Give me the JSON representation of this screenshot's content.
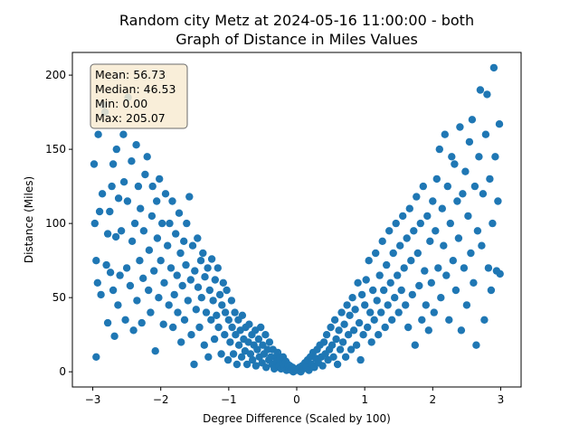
{
  "chart_data": {
    "type": "scatter",
    "title": "Random city Metz at 2024-05-16 11:00:00  - both",
    "subtitle": "Graph of Distance in Miles Values",
    "xlabel": "Degree Difference (Scaled by 100)",
    "ylabel": "Distance (Miles)",
    "xlim": [
      -3.3,
      3.3
    ],
    "ylim": [
      -10.25,
      215.3
    ],
    "xticks": [
      -3,
      -2,
      -1,
      0,
      1,
      2,
      3
    ],
    "yticks": [
      0,
      50,
      100,
      150,
      200
    ],
    "grid": false,
    "marker_color": "#1f77b4",
    "stats_box": {
      "lines": [
        "Mean: 56.73",
        "Median: 46.53",
        "Min: 0.00",
        "Max: 205.07"
      ],
      "background": "#f8ebd2",
      "border": "#6b6b6b"
    },
    "series": [
      {
        "points": [
          [
            -2.95,
            10
          ],
          [
            -2.98,
            140
          ],
          [
            -2.97,
            100
          ],
          [
            -2.95,
            75
          ],
          [
            -2.93,
            60
          ],
          [
            -2.92,
            160
          ],
          [
            -2.9,
            108
          ],
          [
            -2.88,
            52
          ],
          [
            -2.86,
            120
          ],
          [
            -2.85,
            180
          ],
          [
            -2.82,
            175
          ],
          [
            -2.8,
            72
          ],
          [
            -2.78,
            33
          ],
          [
            -2.78,
            93
          ],
          [
            -2.75,
            108
          ],
          [
            -2.74,
            67
          ],
          [
            -2.72,
            125
          ],
          [
            -2.7,
            140
          ],
          [
            -2.7,
            55
          ],
          [
            -2.68,
            24
          ],
          [
            -2.66,
            91
          ],
          [
            -2.65,
            150
          ],
          [
            -2.63,
            45
          ],
          [
            -2.62,
            117
          ],
          [
            -2.6,
            65
          ],
          [
            -2.58,
            95
          ],
          [
            -2.55,
            160
          ],
          [
            -2.54,
            128
          ],
          [
            -2.52,
            35
          ],
          [
            -2.5,
            70
          ],
          [
            -2.49,
            115
          ],
          [
            -2.48,
            185
          ],
          [
            -2.45,
            58
          ],
          [
            -2.43,
            142
          ],
          [
            -2.42,
            88
          ],
          [
            -2.4,
            28
          ],
          [
            -2.38,
            100
          ],
          [
            -2.36,
            153
          ],
          [
            -2.35,
            48
          ],
          [
            -2.33,
            125
          ],
          [
            -2.31,
            75
          ],
          [
            -2.3,
            110
          ],
          [
            -2.28,
            33
          ],
          [
            -2.26,
            63
          ],
          [
            -2.25,
            95
          ],
          [
            -2.23,
            133
          ],
          [
            -2.2,
            145
          ],
          [
            -2.18,
            55
          ],
          [
            -2.17,
            82
          ],
          [
            -2.15,
            40
          ],
          [
            -2.13,
            105
          ],
          [
            -2.12,
            125
          ],
          [
            -2.1,
            68
          ],
          [
            -2.08,
            14
          ],
          [
            -2.06,
            115
          ],
          [
            -2.05,
            90
          ],
          [
            -2.03,
            50
          ],
          [
            -2.02,
            130
          ],
          [
            -2.0,
            75
          ],
          [
            -1.98,
            100
          ],
          [
            -1.96,
            32
          ],
          [
            -1.95,
            60
          ],
          [
            -1.93,
            120
          ],
          [
            -1.9,
            85
          ],
          [
            -1.88,
            45
          ],
          [
            -1.87,
            100
          ],
          [
            -1.85,
            70
          ],
          [
            -1.83,
            115
          ],
          [
            -1.82,
            30
          ],
          [
            -1.8,
            52
          ],
          [
            -1.78,
            93
          ],
          [
            -1.76,
            65
          ],
          [
            -1.75,
            40
          ],
          [
            -1.73,
            107
          ],
          [
            -1.71,
            80
          ],
          [
            -1.7,
            20
          ],
          [
            -1.68,
            58
          ],
          [
            -1.66,
            88
          ],
          [
            -1.65,
            35
          ],
          [
            -1.63,
            72
          ],
          [
            -1.62,
            100
          ],
          [
            -1.6,
            48
          ],
          [
            -1.58,
            118
          ],
          [
            -1.56,
            62
          ],
          [
            -1.55,
            25
          ],
          [
            -1.53,
            85
          ],
          [
            -1.51,
            5
          ],
          [
            -1.5,
            68
          ],
          [
            -1.48,
            42
          ],
          [
            -1.46,
            90
          ],
          [
            -1.45,
            57
          ],
          [
            -1.43,
            30
          ],
          [
            -1.41,
            75
          ],
          [
            -1.4,
            50
          ],
          [
            -1.38,
            80
          ],
          [
            -1.36,
            18
          ],
          [
            -1.35,
            64
          ],
          [
            -1.33,
            40
          ],
          [
            -1.31,
            70
          ],
          [
            -1.3,
            10
          ],
          [
            -1.28,
            55
          ],
          [
            -1.26,
            35
          ],
          [
            -1.25,
            76
          ],
          [
            -1.23,
            48
          ],
          [
            -1.21,
            22
          ],
          [
            -1.2,
            62
          ],
          [
            -1.18,
            38
          ],
          [
            -1.16,
            70
          ],
          [
            -1.15,
            30
          ],
          [
            -1.13,
            52
          ],
          [
            -1.11,
            12
          ],
          [
            -1.1,
            45
          ],
          [
            -1.08,
            60
          ],
          [
            -1.06,
            25
          ],
          [
            -1.05,
            40
          ],
          [
            -1.03,
            55
          ],
          [
            -1.01,
            8
          ],
          [
            -1.0,
            35
          ],
          [
            -0.98,
            20
          ],
          [
            -0.96,
            48
          ],
          [
            -0.95,
            30
          ],
          [
            -0.93,
            12
          ],
          [
            -0.91,
            40
          ],
          [
            -0.9,
            25
          ],
          [
            -0.88,
            5
          ],
          [
            -0.86,
            35
          ],
          [
            -0.85,
            18
          ],
          [
            -0.83,
            28
          ],
          [
            -0.81,
            10
          ],
          [
            -0.8,
            38
          ],
          [
            -0.78,
            22
          ],
          [
            -0.76,
            14
          ],
          [
            -0.75,
            30
          ],
          [
            -0.73,
            5
          ],
          [
            -0.71,
            20
          ],
          [
            -0.7,
            32
          ],
          [
            -0.68,
            12
          ],
          [
            -0.66,
            25
          ],
          [
            -0.65,
            8
          ],
          [
            -0.63,
            18
          ],
          [
            -0.61,
            28
          ],
          [
            -0.6,
            4
          ],
          [
            -0.58,
            15
          ],
          [
            -0.56,
            22
          ],
          [
            -0.55,
            10
          ],
          [
            -0.53,
            30
          ],
          [
            -0.51,
            6
          ],
          [
            -0.5,
            18
          ],
          [
            -0.48,
            12
          ],
          [
            -0.46,
            25
          ],
          [
            -0.45,
            3
          ],
          [
            -0.43,
            15
          ],
          [
            -0.41,
            8
          ],
          [
            -0.4,
            20
          ],
          [
            -0.38,
            10
          ],
          [
            -0.36,
            5
          ],
          [
            -0.35,
            15
          ],
          [
            -0.33,
            2
          ],
          [
            -0.31,
            10
          ],
          [
            -0.3,
            7
          ],
          [
            -0.28,
            13
          ],
          [
            -0.26,
            4
          ],
          [
            -0.25,
            9
          ],
          [
            -0.23,
            2
          ],
          [
            -0.21,
            6
          ],
          [
            -0.2,
            10
          ],
          [
            -0.18,
            3
          ],
          [
            -0.16,
            7
          ],
          [
            -0.15,
            1
          ],
          [
            -0.13,
            5
          ],
          [
            -0.11,
            2
          ],
          [
            -0.1,
            4
          ],
          [
            -0.08,
            1
          ],
          [
            -0.06,
            3
          ],
          [
            -0.05,
            0
          ],
          [
            -0.03,
            2
          ],
          [
            -0.01,
            1
          ],
          [
            0.02,
            1
          ],
          [
            0.04,
            3
          ],
          [
            0.06,
            0
          ],
          [
            0.08,
            4
          ],
          [
            0.1,
            2
          ],
          [
            0.12,
            6
          ],
          [
            0.14,
            3
          ],
          [
            0.16,
            8
          ],
          [
            0.18,
            1
          ],
          [
            0.2,
            10
          ],
          [
            0.22,
            5
          ],
          [
            0.24,
            13
          ],
          [
            0.26,
            3
          ],
          [
            0.28,
            9
          ],
          [
            0.3,
            15
          ],
          [
            0.32,
            6
          ],
          [
            0.34,
            18
          ],
          [
            0.36,
            10
          ],
          [
            0.38,
            4
          ],
          [
            0.4,
            20
          ],
          [
            0.42,
            12
          ],
          [
            0.44,
            25
          ],
          [
            0.46,
            8
          ],
          [
            0.48,
            15
          ],
          [
            0.5,
            30
          ],
          [
            0.52,
            18
          ],
          [
            0.54,
            10
          ],
          [
            0.56,
            35
          ],
          [
            0.58,
            22
          ],
          [
            0.6,
            5
          ],
          [
            0.62,
            28
          ],
          [
            0.64,
            15
          ],
          [
            0.66,
            40
          ],
          [
            0.68,
            20
          ],
          [
            0.7,
            32
          ],
          [
            0.72,
            10
          ],
          [
            0.74,
            45
          ],
          [
            0.76,
            25
          ],
          [
            0.78,
            38
          ],
          [
            0.8,
            15
          ],
          [
            0.82,
            50
          ],
          [
            0.84,
            28
          ],
          [
            0.86,
            42
          ],
          [
            0.88,
            18
          ],
          [
            0.9,
            60
          ],
          [
            0.92,
            33
          ],
          [
            0.94,
            8
          ],
          [
            0.96,
            52
          ],
          [
            0.98,
            25
          ],
          [
            1.0,
            45
          ],
          [
            1.02,
            62
          ],
          [
            1.04,
            30
          ],
          [
            1.06,
            75
          ],
          [
            1.08,
            40
          ],
          [
            1.1,
            20
          ],
          [
            1.12,
            55
          ],
          [
            1.14,
            35
          ],
          [
            1.16,
            80
          ],
          [
            1.18,
            48
          ],
          [
            1.2,
            25
          ],
          [
            1.22,
            65
          ],
          [
            1.24,
            40
          ],
          [
            1.26,
            88
          ],
          [
            1.28,
            55
          ],
          [
            1.3,
            30
          ],
          [
            1.32,
            72
          ],
          [
            1.34,
            45
          ],
          [
            1.36,
            95
          ],
          [
            1.38,
            60
          ],
          [
            1.4,
            35
          ],
          [
            1.42,
            80
          ],
          [
            1.44,
            50
          ],
          [
            1.46,
            100
          ],
          [
            1.48,
            65
          ],
          [
            1.5,
            40
          ],
          [
            1.52,
            85
          ],
          [
            1.54,
            55
          ],
          [
            1.56,
            105
          ],
          [
            1.58,
            70
          ],
          [
            1.6,
            45
          ],
          [
            1.62,
            90
          ],
          [
            1.64,
            30
          ],
          [
            1.66,
            110
          ],
          [
            1.68,
            75
          ],
          [
            1.7,
            52
          ],
          [
            1.72,
            95
          ],
          [
            1.74,
            18
          ],
          [
            1.76,
            118
          ],
          [
            1.78,
            80
          ],
          [
            1.8,
            58
          ],
          [
            1.82,
            100
          ],
          [
            1.84,
            35
          ],
          [
            1.86,
            125
          ],
          [
            1.88,
            68
          ],
          [
            1.9,
            45
          ],
          [
            1.92,
            105
          ],
          [
            1.94,
            28
          ],
          [
            1.96,
            88
          ],
          [
            1.98,
            60
          ],
          [
            2.0,
            115
          ],
          [
            2.02,
            40
          ],
          [
            2.04,
            95
          ],
          [
            2.06,
            130
          ],
          [
            2.08,
            70
          ],
          [
            2.1,
            150
          ],
          [
            2.12,
            50
          ],
          [
            2.14,
            110
          ],
          [
            2.16,
            85
          ],
          [
            2.18,
            160
          ],
          [
            2.2,
            65
          ],
          [
            2.22,
            125
          ],
          [
            2.24,
            35
          ],
          [
            2.26,
            100
          ],
          [
            2.28,
            145
          ],
          [
            2.3,
            75
          ],
          [
            2.32,
            140
          ],
          [
            2.34,
            55
          ],
          [
            2.36,
            115
          ],
          [
            2.38,
            90
          ],
          [
            2.4,
            165
          ],
          [
            2.42,
            28
          ],
          [
            2.44,
            120
          ],
          [
            2.46,
            70
          ],
          [
            2.48,
            135
          ],
          [
            2.5,
            45
          ],
          [
            2.52,
            105
          ],
          [
            2.54,
            155
          ],
          [
            2.56,
            80
          ],
          [
            2.58,
            170
          ],
          [
            2.6,
            60
          ],
          [
            2.62,
            125
          ],
          [
            2.64,
            18
          ],
          [
            2.66,
            95
          ],
          [
            2.68,
            145
          ],
          [
            2.7,
            190
          ],
          [
            2.72,
            85
          ],
          [
            2.74,
            120
          ],
          [
            2.76,
            35
          ],
          [
            2.78,
            160
          ],
          [
            2.8,
            187
          ],
          [
            2.82,
            70
          ],
          [
            2.84,
            130
          ],
          [
            2.86,
            55
          ],
          [
            2.88,
            100
          ],
          [
            2.9,
            205
          ],
          [
            2.92,
            145
          ],
          [
            2.94,
            68
          ],
          [
            2.96,
            115
          ],
          [
            2.98,
            167
          ],
          [
            2.99,
            66
          ]
        ]
      }
    ]
  }
}
